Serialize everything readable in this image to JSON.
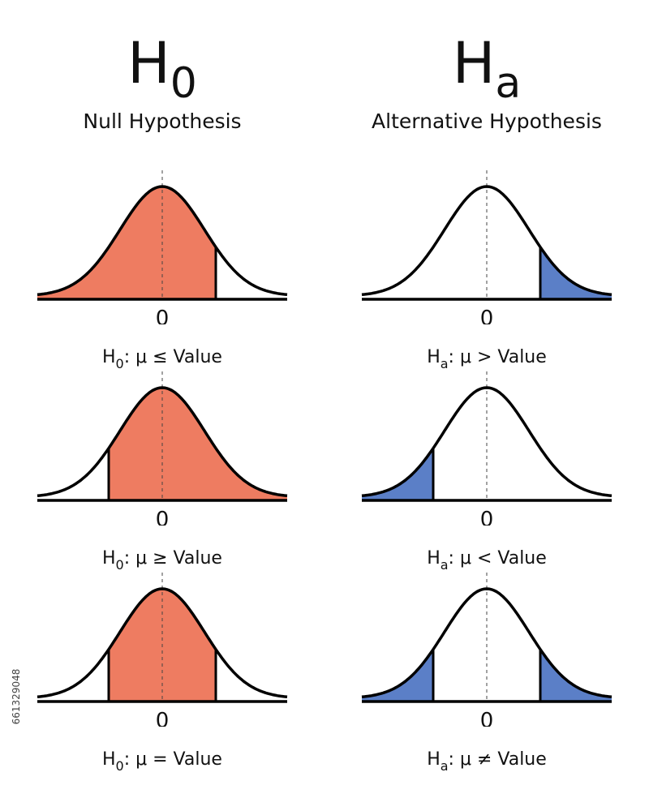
{
  "columns": [
    {
      "symbol": "H",
      "subscript": "0",
      "title": "Null Hypothesis",
      "fill_color": "#EE7C61",
      "panels": [
        {
          "zero_label": "0",
          "eq_base": "H",
          "eq_sub": "0",
          "eq_rest": ": μ ≤ Value",
          "shaded": "left-of-right-cut"
        },
        {
          "zero_label": "0",
          "eq_base": "H",
          "eq_sub": "0",
          "eq_rest": ": μ ≥ Value",
          "shaded": "right-of-left-cut"
        },
        {
          "zero_label": "0",
          "eq_base": "H",
          "eq_sub": "0",
          "eq_rest": ": μ = Value",
          "shaded": "between-cuts"
        }
      ]
    },
    {
      "symbol": "H",
      "subscript": "a",
      "title": "Alternative Hypothesis",
      "fill_color": "#5B7FC7",
      "panels": [
        {
          "zero_label": "0",
          "eq_base": "H",
          "eq_sub": "a",
          "eq_rest": ": μ > Value",
          "shaded": "right-tail"
        },
        {
          "zero_label": "0",
          "eq_base": "H",
          "eq_sub": "a",
          "eq_rest": ": μ < Value",
          "shaded": "left-tail"
        },
        {
          "zero_label": "0",
          "eq_base": "H",
          "eq_sub": "a",
          "eq_rest": ": μ ≠ Value",
          "shaded": "both-tails"
        }
      ]
    }
  ],
  "stock_id": "661329048"
}
